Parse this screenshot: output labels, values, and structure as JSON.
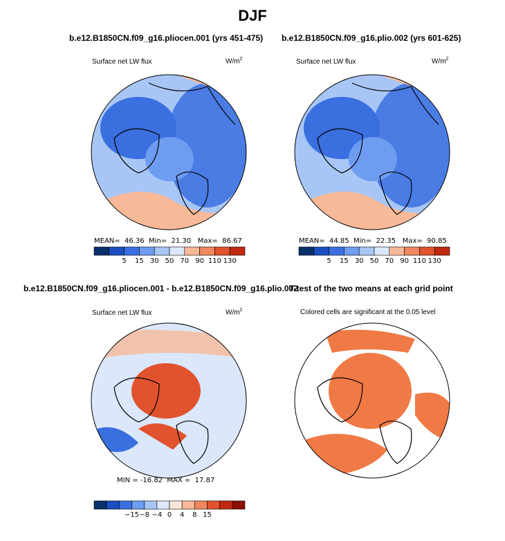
{
  "title": "DJF",
  "panels": [
    {
      "id": "p1",
      "header": "b.e12.B1850CN.f09_g16.pliocen.001 (yrs 451-475)",
      "variable": "Surface net LW flux",
      "units_base": "W/m",
      "units_exp": "2",
      "stats": {
        "mean_label": "MEAN=",
        "mean": "46.36",
        "min_label": "Min=",
        "min": "21.30",
        "max_label": "Max=",
        "max": "86.67"
      }
    },
    {
      "id": "p2",
      "header": "b.e12.B1850CN.f09_g16.plio.002 (yrs 601-625)",
      "variable": "Surface net LW flux",
      "units_base": "W/m",
      "units_exp": "2",
      "stats": {
        "mean_label": "MEAN=",
        "mean": "44.85",
        "min_label": "Min=",
        "min": "22.35",
        "max_label": "Max=",
        "max": "90.85"
      }
    },
    {
      "id": "p3",
      "header": "b.e12.B1850CN.f09_g16.pliocen.001 - b.e12.B1850CN.f09_g16.plio.002",
      "variable": "Surface net LW flux",
      "units_base": "W/m",
      "units_exp": "2",
      "stats": {
        "min_label": "MIN =",
        "min": "-16.82",
        "max_label": "MAX =",
        "max": "17.87"
      }
    },
    {
      "id": "p4",
      "header": "T-test of the two means at each grid point",
      "note": "Colored cells are significant at the 0.05 level"
    }
  ],
  "colors": {
    "ramp": [
      "#08306b",
      "#1a4fc0",
      "#3a6fe0",
      "#6e9cf0",
      "#a8c6f5",
      "#dbe8fb",
      "#fde6d8",
      "#f8b998",
      "#f0875f",
      "#e0532e",
      "#c02a10",
      "#8a0f05"
    ],
    "land_outline": "#000000",
    "signif": "#f07a45"
  },
  "chart_data": [
    {
      "type": "heatmap",
      "title": "b.e12.B1850CN.f09_g16.pliocen.001 (yrs 451-475)",
      "variable": "Surface net LW flux",
      "units": "W/m2",
      "projection": "north polar stereographic",
      "colorbar_levels": [
        5,
        15,
        30,
        50,
        70,
        90,
        110,
        130
      ],
      "colorbar_ticks": [
        "5",
        "15",
        "30",
        "50",
        "70",
        "90",
        "110",
        "130"
      ],
      "mean": 46.36,
      "min": 21.3,
      "max": 86.67
    },
    {
      "type": "heatmap",
      "title": "b.e12.B1850CN.f09_g16.plio.002 (yrs 601-625)",
      "variable": "Surface net LW flux",
      "units": "W/m2",
      "projection": "north polar stereographic",
      "colorbar_levels": [
        5,
        15,
        30,
        50,
        70,
        90,
        110,
        130
      ],
      "colorbar_ticks": [
        "5",
        "15",
        "30",
        "50",
        "70",
        "90",
        "110",
        "130"
      ],
      "mean": 44.85,
      "min": 22.35,
      "max": 90.85
    },
    {
      "type": "heatmap",
      "title": "b.e12.B1850CN.f09_g16.pliocen.001 - b.e12.B1850CN.f09_g16.plio.002",
      "variable": "Surface net LW flux",
      "units": "W/m2",
      "projection": "north polar stereographic",
      "colorbar_levels": [
        -15,
        -8,
        -4,
        0,
        4,
        8,
        15
      ],
      "colorbar_ticks": [
        "-15",
        "-8",
        "-4",
        "0",
        "4",
        "8",
        "15"
      ],
      "min": -16.82,
      "max": 17.87
    },
    {
      "type": "heatmap",
      "title": "T-test of the two means at each grid point",
      "subtitle": "Colored cells are significant at the 0.05 level",
      "projection": "north polar stereographic"
    }
  ]
}
